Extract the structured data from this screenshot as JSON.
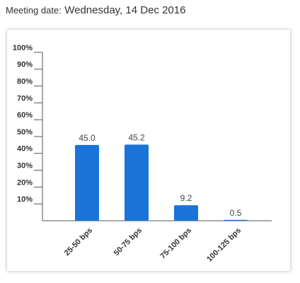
{
  "header": {
    "label": "Meeting date:",
    "date": "Wednesday, 14 Dec 2016"
  },
  "chart_data": {
    "type": "bar",
    "categories": [
      "25-50 bps",
      "50-75 bps",
      "75-100 bps",
      "100-125 bps"
    ],
    "values": [
      45.0,
      45.2,
      9.2,
      0.5
    ],
    "value_labels": [
      "45.0",
      "45.2",
      "9.2",
      "0.5"
    ],
    "color": "#1a74d8",
    "ylim": [
      0,
      100
    ],
    "yticks": [
      {
        "value": 10,
        "label": "10%"
      },
      {
        "value": 20,
        "label": "20%"
      },
      {
        "value": 30,
        "label": "30%"
      },
      {
        "value": 40,
        "label": "40%"
      },
      {
        "value": 50,
        "label": "50%"
      },
      {
        "value": 60,
        "label": "60%"
      },
      {
        "value": 70,
        "label": "70%"
      },
      {
        "value": 80,
        "label": "80%"
      },
      {
        "value": 90,
        "label": "90%"
      },
      {
        "value": 100,
        "label": "100%"
      }
    ],
    "grid": false
  }
}
